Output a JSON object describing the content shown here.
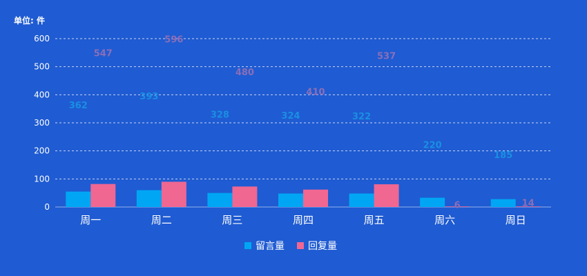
{
  "chart_data": {
    "type": "bar",
    "unit_label": "单位: 件",
    "categories": [
      "周一",
      "周二",
      "周三",
      "周四",
      "周五",
      "周六",
      "周日"
    ],
    "ylim": [
      0,
      600
    ],
    "yticks": [
      0,
      100,
      200,
      300,
      400,
      500,
      600
    ],
    "grid": true,
    "legend_position": "bottom-center",
    "series": [
      {
        "name": "留言量",
        "color": "#00a6f4",
        "label_color": "#1a8fe3",
        "values": [
          55,
          60,
          50,
          48,
          48,
          33,
          28
        ],
        "labels": [
          "362",
          "393",
          "328",
          "324",
          "322",
          "220",
          "185"
        ],
        "label_values": [
          362,
          393,
          328,
          324,
          322,
          220,
          185
        ]
      },
      {
        "name": "回复量",
        "color": "#f06792",
        "label_color": "#8a6fb8",
        "values": [
          82,
          90,
          73,
          62,
          81,
          2,
          2
        ],
        "labels": [
          "547",
          "596",
          "480",
          "410",
          "537",
          "6",
          "14"
        ],
        "label_values": [
          547,
          596,
          480,
          410,
          537,
          6,
          14
        ]
      }
    ]
  }
}
